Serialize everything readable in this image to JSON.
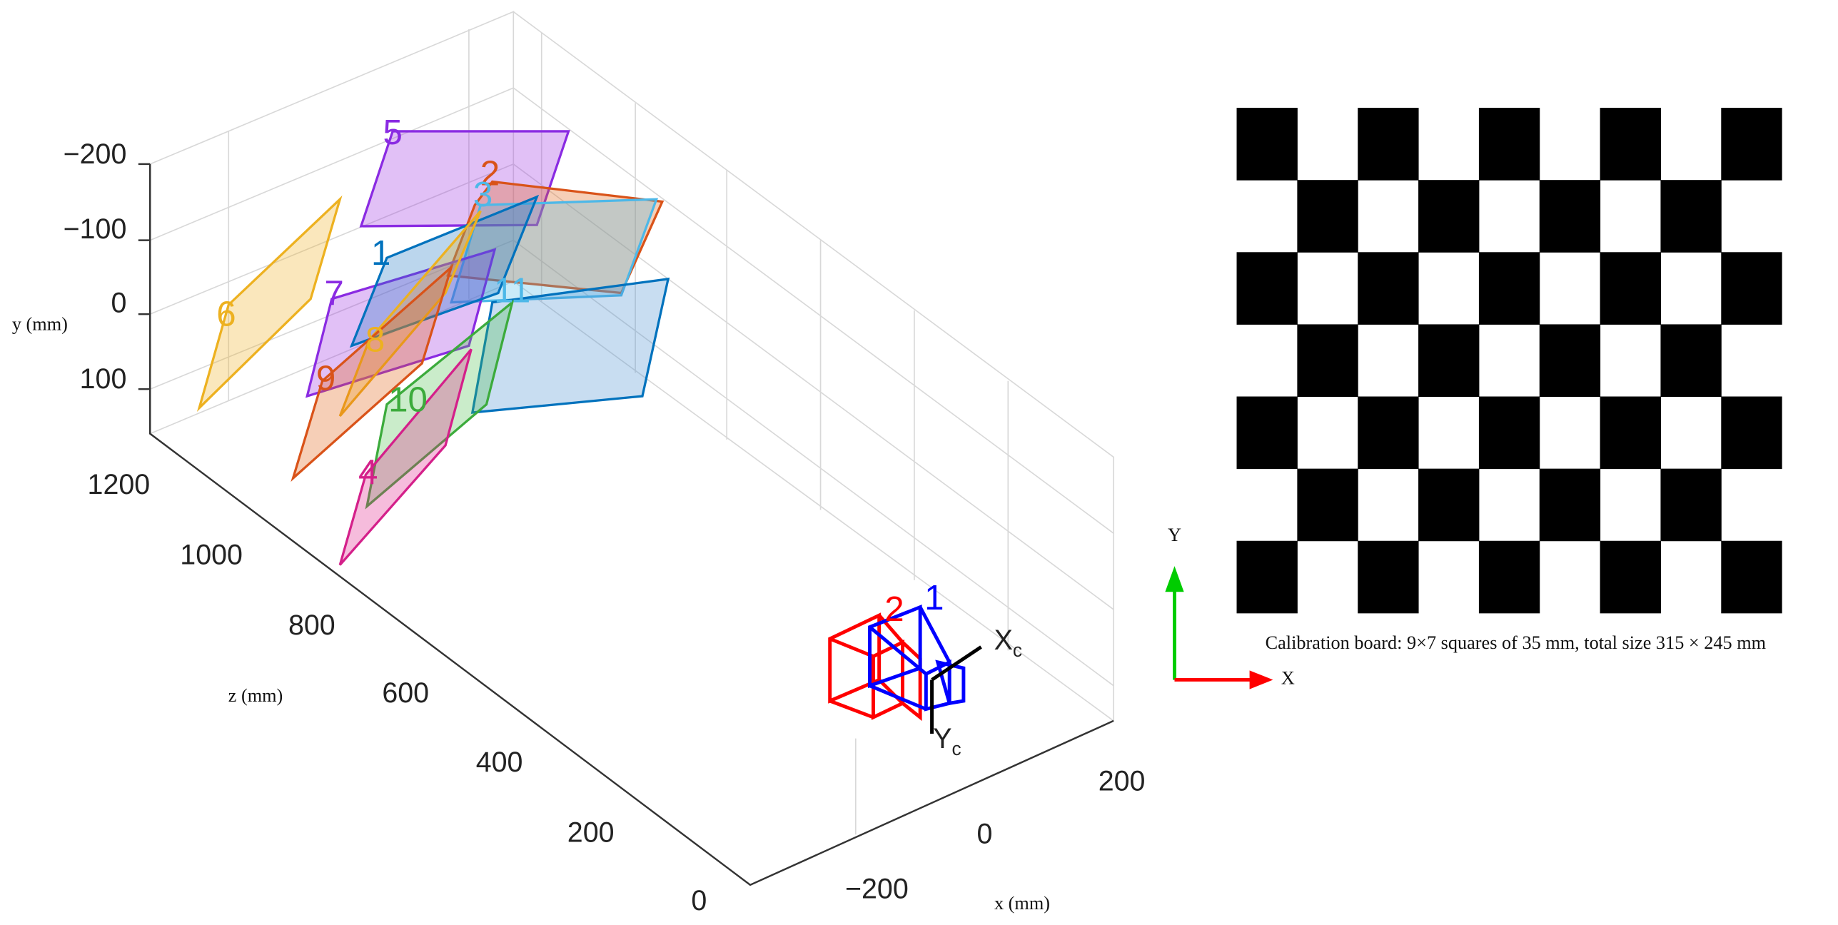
{
  "axes": {
    "x": {
      "label": "x (mm)",
      "ticks": [
        "−200",
        "0",
        "200"
      ]
    },
    "y": {
      "label": "y (mm)",
      "ticks": [
        "−200",
        "−100",
        "0",
        "100"
      ]
    },
    "z": {
      "label": "z (mm)",
      "ticks": [
        "1200",
        "1000",
        "800",
        "600",
        "400",
        "200",
        "0"
      ]
    }
  },
  "boards": [
    "1",
    "2",
    "3",
    "4",
    "5",
    "6",
    "7",
    "8",
    "9",
    "10",
    "11"
  ],
  "cameras": {
    "labels": [
      "1",
      "2"
    ],
    "x_axis": "X",
    "x_sub": "c",
    "y_axis": "Y",
    "y_sub": "c"
  },
  "calibration_board": {
    "caption": "Calibration board: 9×7 squares of 35 mm, total size 315 × 245 mm",
    "x_axis": "X",
    "y_axis": "Y"
  }
}
